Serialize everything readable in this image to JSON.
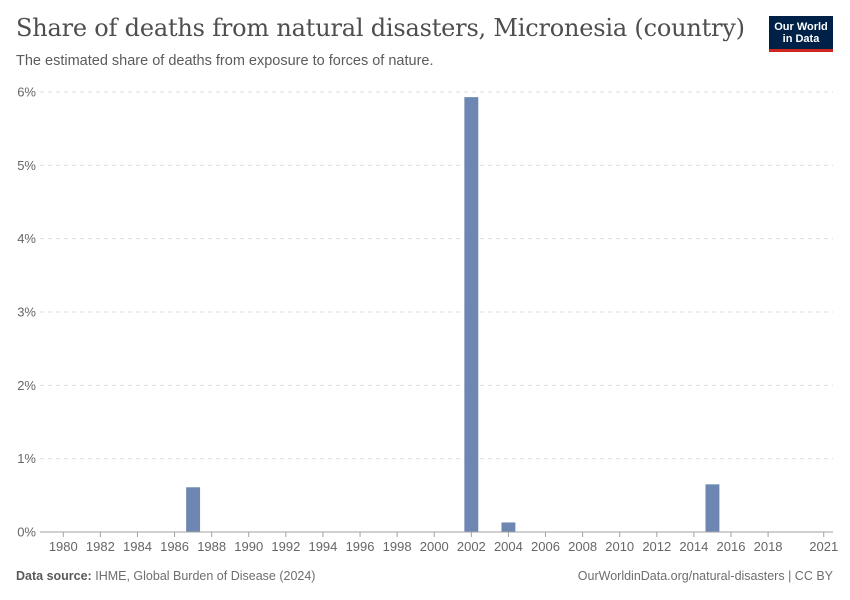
{
  "header": {
    "title": "Share of deaths from natural disasters, Micronesia (country)",
    "subtitle": "The estimated share of deaths from exposure to forces of nature."
  },
  "logo": {
    "line1": "Our World",
    "line2": "in Data"
  },
  "footer": {
    "source_label": "Data source:",
    "source_text": "IHME, Global Burden of Disease (2024)",
    "url_text": "OurWorldinData.org/natural-disasters | CC BY"
  },
  "colors": {
    "bar": "#6d87b2",
    "grid": "#dddddd",
    "axis": "#a1a1a1"
  },
  "chart_data": {
    "type": "bar",
    "title": "Share of deaths from natural disasters, Micronesia (country)",
    "xlabel": "",
    "ylabel": "",
    "xlim": [
      1980,
      2021
    ],
    "ylim": [
      0,
      6
    ],
    "y_ticks": [
      0,
      1,
      2,
      3,
      4,
      5,
      6
    ],
    "y_tick_labels": [
      "0%",
      "1%",
      "2%",
      "3%",
      "4%",
      "5%",
      "6%"
    ],
    "x_ticks": [
      1980,
      1982,
      1984,
      1986,
      1988,
      1990,
      1992,
      1994,
      1996,
      1998,
      2000,
      2002,
      2004,
      2006,
      2008,
      2010,
      2012,
      2014,
      2016,
      2018,
      2021
    ],
    "x_tick_labels": [
      "1980",
      "1982",
      "1984",
      "1986",
      "1988",
      "1990",
      "1992",
      "1994",
      "1996",
      "1998",
      "2000",
      "2002",
      "2004",
      "2006",
      "2008",
      "2010",
      "2012",
      "2014",
      "2016",
      "2018",
      "2021"
    ],
    "grid": true,
    "x": [
      1987,
      2002,
      2004,
      2015
    ],
    "values": [
      0.61,
      5.93,
      0.13,
      0.65
    ],
    "unit": "%"
  }
}
